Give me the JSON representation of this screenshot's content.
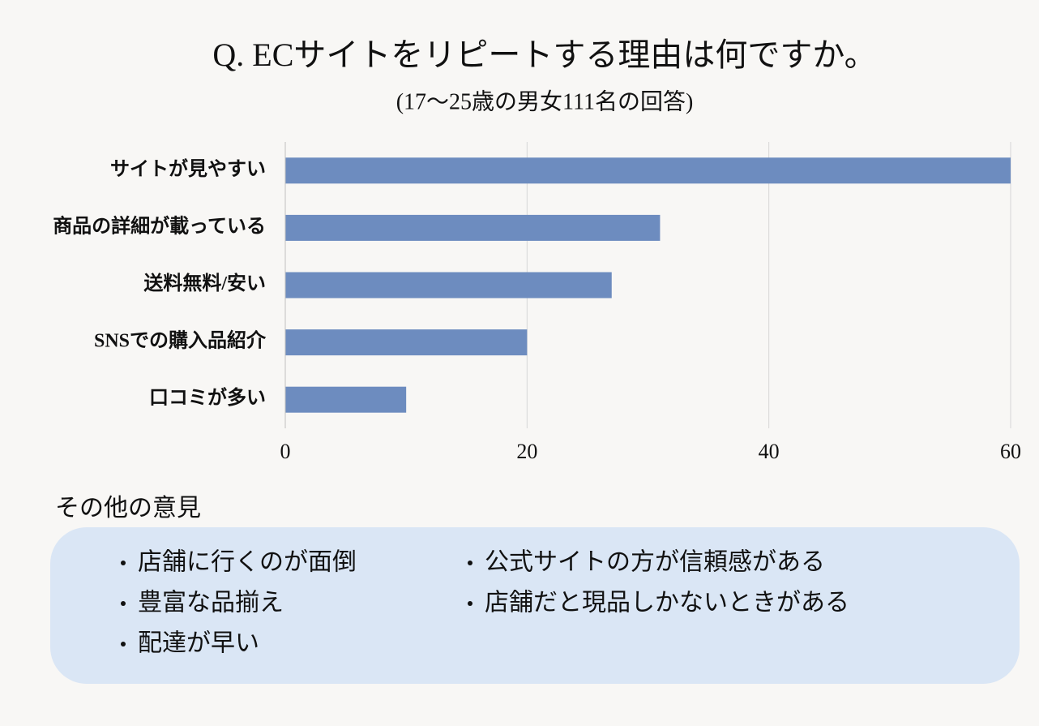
{
  "chart_data": {
    "type": "bar",
    "orientation": "horizontal",
    "title": "Q. ECサイトをリピートする理由は何ですか。",
    "subtitle": "(17〜25歳の男女111名の回答)",
    "categories": [
      "サイトが見やすい",
      "商品の詳細が載っている",
      "送料無料/安い",
      "SNSでの購入品紹介",
      "口コミが多い"
    ],
    "values": [
      60,
      31,
      27,
      20,
      10
    ],
    "color": "#6d8cbf",
    "xlim": [
      0,
      60
    ],
    "xticks": [
      0,
      20,
      40,
      60
    ],
    "grid": true
  },
  "other_opinions": {
    "title": "その他の意見",
    "left": [
      "店舗に行くのが面倒",
      "豊富な品揃え",
      "配達が早い"
    ],
    "right": [
      "公式サイトの方が信頼感がある",
      "店舗だと現品しかないときがある"
    ]
  }
}
